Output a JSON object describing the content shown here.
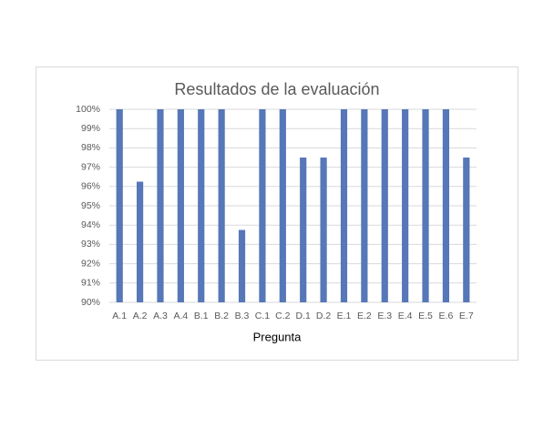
{
  "chart_data": {
    "type": "bar",
    "title": "Resultados de la evaluación",
    "x_label": "Pregunta",
    "categories": [
      "A.1",
      "A.2",
      "A.3",
      "A.4",
      "B.1",
      "B.2",
      "B.3",
      "C.1",
      "C.2",
      "D.1",
      "D.2",
      "E.1",
      "E.2",
      "E.3",
      "E.4",
      "E.5",
      "E.6",
      "E.7"
    ],
    "values": [
      100,
      96.25,
      100,
      100,
      100,
      100,
      93.75,
      100,
      100,
      97.5,
      97.5,
      100,
      100,
      100,
      100,
      100,
      100,
      97.5
    ],
    "color": "#5677b8",
    "ylim": [
      90,
      100
    ],
    "yticks": [
      {
        "value": 90,
        "label": "90%"
      },
      {
        "value": 91,
        "label": "91%"
      },
      {
        "value": 92,
        "label": "92%"
      },
      {
        "value": 93,
        "label": "93%"
      },
      {
        "value": 94,
        "label": "94%"
      },
      {
        "value": 95,
        "label": "95%"
      },
      {
        "value": 96,
        "label": "96%"
      },
      {
        "value": 97,
        "label": "97%"
      },
      {
        "value": 98,
        "label": "98%"
      },
      {
        "value": 99,
        "label": "99%"
      },
      {
        "value": 100,
        "label": "100%"
      }
    ],
    "grid": true
  }
}
